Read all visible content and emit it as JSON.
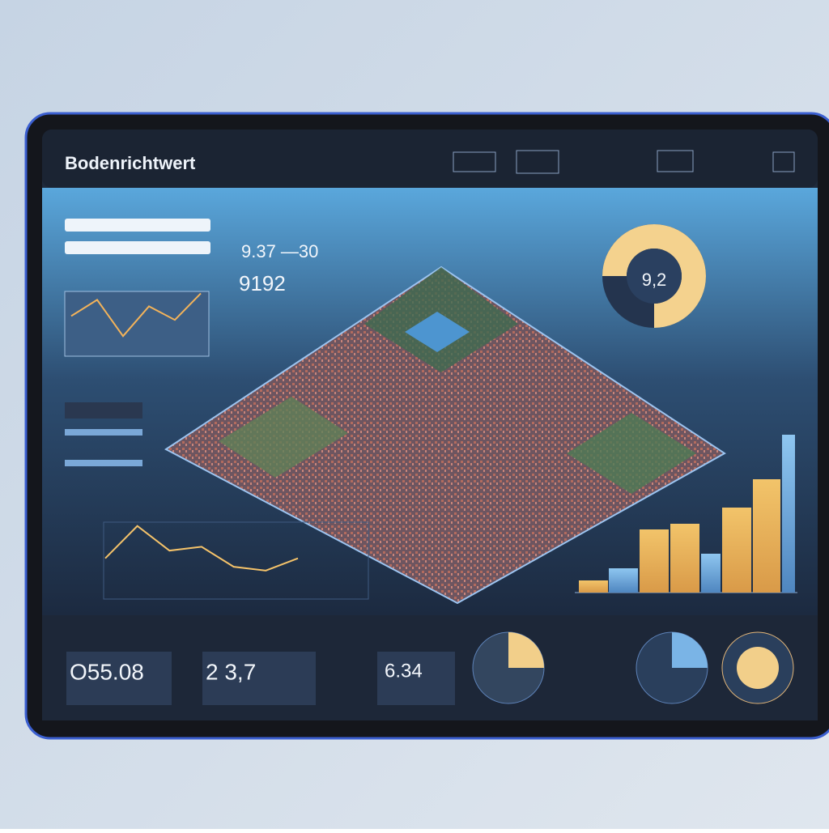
{
  "header": {
    "title": "Bodenrichtwert"
  },
  "stats": {
    "range": "9.37 —30",
    "value": "9192"
  },
  "donut": {
    "label": "9,2"
  },
  "trend_small": {
    "values": [
      62,
      87,
      31,
      77,
      56,
      97
    ]
  },
  "trend_large": {
    "values": [
      53,
      95,
      63,
      68,
      42,
      37,
      53
    ]
  },
  "bars": {
    "values": [
      15,
      30,
      78,
      85,
      48,
      105,
      140,
      195
    ]
  },
  "kpis": [
    "O55.08",
    "2 3,7",
    "6.34"
  ]
}
